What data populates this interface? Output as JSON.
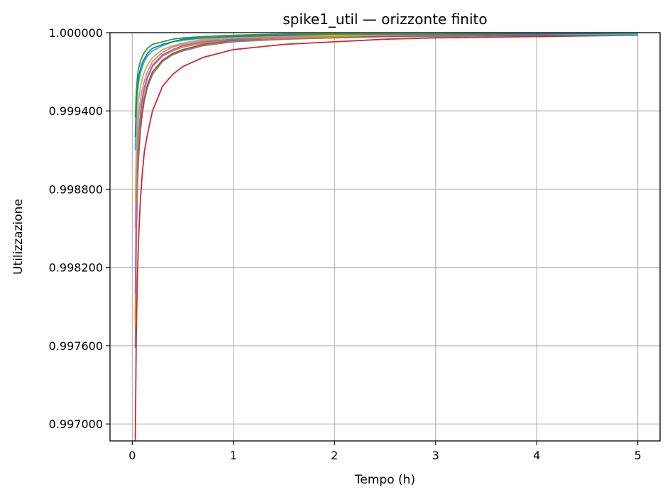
{
  "chart_data": {
    "type": "line",
    "title": "spike1_util — orizzonte finito",
    "xlabel": "Tempo (h)",
    "ylabel": "Utilizzazione",
    "xlim": [
      -0.22,
      5.22
    ],
    "ylim": [
      0.99687,
      1.0
    ],
    "grid": true,
    "legend": "none",
    "xticks": [
      0,
      1,
      2,
      3,
      4,
      5
    ],
    "xtick_labels": [
      "0",
      "1",
      "2",
      "3",
      "4",
      "5"
    ],
    "yticks": [
      0.997,
      0.9976,
      0.9982,
      0.9988,
      0.9994,
      1.0
    ],
    "ytick_labels": [
      "0.997000",
      "0.997600",
      "0.998200",
      "0.998800",
      "0.999400",
      "1.000000"
    ],
    "x": [
      0.03,
      0.04,
      0.05,
      0.06,
      0.08,
      0.1,
      0.12,
      0.15,
      0.2,
      0.3,
      0.4,
      0.5,
      0.7,
      1.0,
      1.5,
      2.0,
      2.5,
      3.0,
      4.0,
      5.0
    ],
    "series": [
      {
        "color": "#d62728",
        "values": [
          0.99687,
          0.9977,
          0.9981,
          0.99838,
          0.99871,
          0.99893,
          0.99909,
          0.99922,
          0.9994,
          0.99959,
          0.99968,
          0.99974,
          0.99981,
          0.99987,
          0.99991,
          0.99993,
          0.99995,
          0.99996,
          0.99997,
          0.99998
        ]
      },
      {
        "color": "#7f7f7f",
        "values": [
          0.99758,
          0.9984,
          0.99878,
          0.999,
          0.99924,
          0.99938,
          0.99948,
          0.99958,
          0.99968,
          0.99978,
          0.99983,
          0.99986,
          0.9999,
          0.99993,
          0.99995,
          0.99996,
          0.99997,
          0.99997,
          0.99998,
          0.99998
        ]
      },
      {
        "color": "#8c564b",
        "values": [
          0.9978,
          0.99852,
          0.99884,
          0.99905,
          0.99927,
          0.99941,
          0.9995,
          0.9996,
          0.9997,
          0.99979,
          0.99984,
          0.99987,
          0.99991,
          0.99994,
          0.99996,
          0.99997,
          0.99997,
          0.99998,
          0.99998,
          0.99999
        ]
      },
      {
        "color": "#ff7f0e",
        "values": [
          0.99775,
          0.9986,
          0.99895,
          0.99915,
          0.99935,
          0.99947,
          0.99956,
          0.99965,
          0.99974,
          0.99982,
          0.99986,
          0.99989,
          0.99992,
          0.99995,
          0.99996,
          0.99997,
          0.99998,
          0.99998,
          0.99999,
          0.99999
        ]
      },
      {
        "color": "#9467bd",
        "values": [
          0.998,
          0.9987,
          0.99902,
          0.9992,
          0.99938,
          0.9995,
          0.99958,
          0.99966,
          0.99975,
          0.99983,
          0.99987,
          0.9999,
          0.99993,
          0.99995,
          0.99997,
          0.99998,
          0.99998,
          0.99998,
          0.99999,
          0.99999
        ]
      },
      {
        "color": "#e377c2",
        "values": [
          0.9985,
          0.999,
          0.99922,
          0.99935,
          0.99948,
          0.99957,
          0.99963,
          0.9997,
          0.99978,
          0.99985,
          0.99989,
          0.99991,
          0.99994,
          0.99996,
          0.99997,
          0.99998,
          0.99998,
          0.99999,
          0.99999,
          0.99999
        ]
      },
      {
        "color": "#bcbd22",
        "values": [
          0.9987,
          0.99915,
          0.99935,
          0.99947,
          0.99958,
          0.99965,
          0.9997,
          0.99975,
          0.99981,
          0.99987,
          0.9999,
          0.99992,
          0.99995,
          0.99996,
          0.99998,
          0.99998,
          0.99999,
          0.99999,
          0.99999,
          0.99999
        ]
      },
      {
        "color": "#17becf",
        "values": [
          0.9991,
          0.9994,
          0.99953,
          0.99961,
          0.99969,
          0.99974,
          0.99978,
          0.99982,
          0.99986,
          0.9999,
          0.99993,
          0.99994,
          0.99996,
          0.99997,
          0.99998,
          0.99999,
          0.99999,
          0.99999,
          0.99999,
          0.99999
        ]
      },
      {
        "color": "#1f77b4",
        "values": [
          0.9992,
          0.99945,
          0.99957,
          0.99965,
          0.99972,
          0.99977,
          0.9998,
          0.99984,
          0.99988,
          0.99991,
          0.99993,
          0.99995,
          0.99996,
          0.99997,
          0.99998,
          0.99999,
          0.99999,
          0.99999,
          0.99999,
          1.0
        ]
      },
      {
        "color": "#2ca02c",
        "values": [
          0.99935,
          0.99955,
          0.99965,
          0.99972,
          0.99978,
          0.99982,
          0.99985,
          0.99988,
          0.99991,
          0.99993,
          0.99995,
          0.99996,
          0.99997,
          0.99998,
          0.99999,
          0.99999,
          0.99999,
          0.99999,
          1.0,
          1.0
        ]
      }
    ]
  }
}
